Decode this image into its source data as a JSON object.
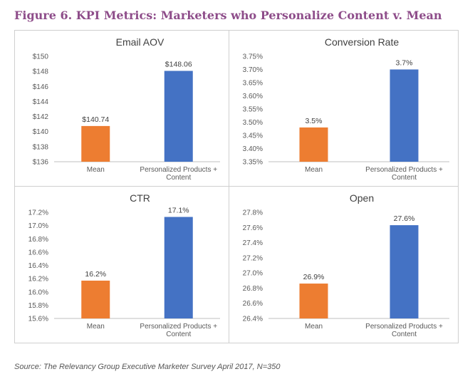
{
  "figure_title": "Figure 6. KPI Metrics: Marketers who Personalize Content v. Mean",
  "source": "Source: The Relevancy Group Executive Marketer Survey April 2017, N=350",
  "colors": {
    "mean": "#ed7d31",
    "personalized": "#4472c4",
    "title": "#8e4d8a"
  },
  "chart_data": [
    {
      "type": "bar",
      "title": "Email AOV",
      "categories": [
        "Mean",
        "Personalized Products + Content"
      ],
      "category_lines": [
        [
          "Mean"
        ],
        [
          "Personalized Products +",
          "Content"
        ]
      ],
      "values": [
        140.74,
        148.06
      ],
      "data_labels": [
        "$140.74",
        "$148.06"
      ],
      "ylim": [
        136,
        150
      ],
      "yticks": [
        136,
        138,
        140,
        142,
        144,
        146,
        148,
        150
      ],
      "ytick_labels": [
        "$136",
        "$138",
        "$140",
        "$142",
        "$144",
        "$146",
        "$148",
        "$150"
      ],
      "grid": false
    },
    {
      "type": "bar",
      "title": "Conversion Rate",
      "categories": [
        "Mean",
        "Personalized Products + Content"
      ],
      "category_lines": [
        [
          "Mean"
        ],
        [
          "Personalized Products +",
          "Content"
        ]
      ],
      "values": [
        3.48,
        3.7
      ],
      "data_labels": [
        "3.5%",
        "3.7%"
      ],
      "ylim": [
        3.35,
        3.75
      ],
      "yticks": [
        3.35,
        3.4,
        3.45,
        3.5,
        3.55,
        3.6,
        3.65,
        3.7,
        3.75
      ],
      "ytick_labels": [
        "3.35%",
        "3.40%",
        "3.45%",
        "3.50%",
        "3.55%",
        "3.60%",
        "3.65%",
        "3.70%",
        "3.75%"
      ],
      "grid": false
    },
    {
      "type": "bar",
      "title": "CTR",
      "categories": [
        "Mean",
        "Personalized Products + Content"
      ],
      "category_lines": [
        [
          "Mean"
        ],
        [
          "Personalized Products +",
          "Content"
        ]
      ],
      "values": [
        16.17,
        17.13
      ],
      "data_labels": [
        "16.2%",
        "17.1%"
      ],
      "ylim": [
        15.6,
        17.2
      ],
      "yticks": [
        15.6,
        15.8,
        16.0,
        16.2,
        16.4,
        16.6,
        16.8,
        17.0,
        17.2
      ],
      "ytick_labels": [
        "15.6%",
        "15.8%",
        "16.0%",
        "16.2%",
        "16.4%",
        "16.6%",
        "16.8%",
        "17.0%",
        "17.2%"
      ],
      "grid": false
    },
    {
      "type": "bar",
      "title": "Open",
      "categories": [
        "Mean",
        "Personalized Products + Content"
      ],
      "category_lines": [
        [
          "Mean"
        ],
        [
          "Personalized Products +",
          "Content"
        ]
      ],
      "values": [
        26.86,
        27.63
      ],
      "data_labels": [
        "26.9%",
        "27.6%"
      ],
      "ylim": [
        26.4,
        27.8
      ],
      "yticks": [
        26.4,
        26.6,
        26.8,
        27.0,
        27.2,
        27.4,
        27.6,
        27.8
      ],
      "ytick_labels": [
        "26.4%",
        "26.6%",
        "26.8%",
        "27.0%",
        "27.2%",
        "27.4%",
        "27.6%",
        "27.8%"
      ],
      "grid": false
    }
  ]
}
